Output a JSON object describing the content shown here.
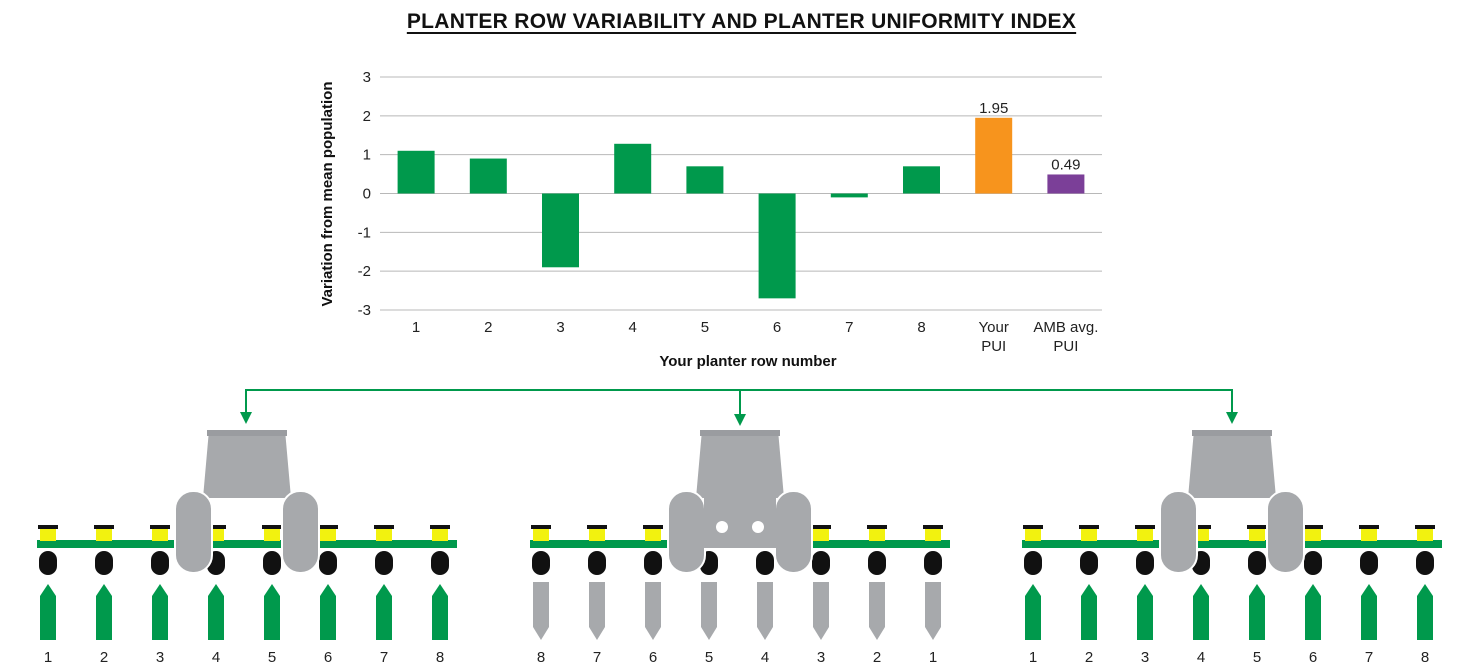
{
  "chart_data": {
    "type": "bar",
    "title": "PLANTER ROW VARIABILITY AND PLANTER UNIFORMITY INDEX",
    "xlabel": "Your planter row number",
    "ylabel": "Variation from mean population",
    "ylim": [
      -3,
      3
    ],
    "yticks": [
      "3",
      "2",
      "1",
      "0",
      "-1",
      "-2",
      "-3"
    ],
    "categories": [
      [
        "1"
      ],
      [
        "2"
      ],
      [
        "3"
      ],
      [
        "4"
      ],
      [
        "5"
      ],
      [
        "6"
      ],
      [
        "7"
      ],
      [
        "8"
      ],
      [
        "Your",
        "PUI"
      ],
      [
        "AMB avg.",
        "PUI"
      ]
    ],
    "values": [
      1.1,
      0.9,
      -1.9,
      1.28,
      0.7,
      -2.7,
      -0.1,
      0.7,
      1.95,
      0.49
    ],
    "colors": [
      "#00994c",
      "#00994c",
      "#00994c",
      "#00994c",
      "#00994c",
      "#00994c",
      "#00994c",
      "#00994c",
      "#f7941d",
      "#7b3f98"
    ],
    "data_labels": [
      "",
      "",
      "",
      "",
      "",
      "",
      "",
      "",
      "1.95",
      "0.49"
    ],
    "grid": true
  },
  "colors": {
    "green": "#00994c",
    "gray": "#a7a9ac",
    "yellow": "#f2f20f",
    "black": "#111111",
    "orange": "#f7941d",
    "purple": "#7b3f98"
  },
  "planters": [
    {
      "name": "left",
      "row_labels": [
        "1",
        "2",
        "3",
        "4",
        "5",
        "6",
        "7",
        "8"
      ],
      "shank_color": "green",
      "facing": "up"
    },
    {
      "name": "middle",
      "row_labels": [
        "8",
        "7",
        "6",
        "5",
        "4",
        "3",
        "2",
        "1"
      ],
      "shank_color": "gray",
      "facing": "down"
    },
    {
      "name": "right",
      "row_labels": [
        "1",
        "2",
        "3",
        "4",
        "5",
        "6",
        "7",
        "8"
      ],
      "shank_color": "green",
      "facing": "up"
    }
  ]
}
